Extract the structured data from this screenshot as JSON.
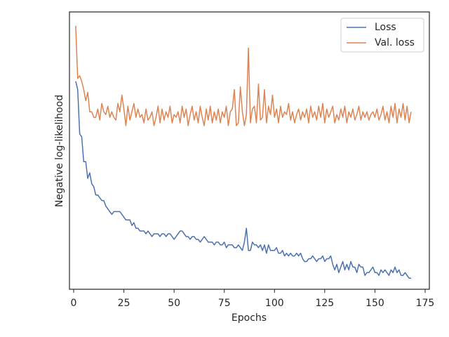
{
  "chart_data": {
    "type": "line",
    "xlabel": "Epochs",
    "ylabel": "Negative log-likelihood",
    "x": [
      1,
      2,
      3,
      4,
      5,
      6,
      7,
      8,
      9,
      10,
      11,
      12,
      13,
      14,
      15,
      16,
      17,
      18,
      19,
      20,
      21,
      22,
      23,
      24,
      25,
      26,
      27,
      28,
      29,
      30,
      31,
      32,
      33,
      34,
      35,
      36,
      37,
      38,
      39,
      40,
      41,
      42,
      43,
      44,
      45,
      46,
      47,
      48,
      49,
      50,
      51,
      52,
      53,
      54,
      55,
      56,
      57,
      58,
      59,
      60,
      61,
      62,
      63,
      64,
      65,
      66,
      67,
      68,
      69,
      70,
      71,
      72,
      73,
      74,
      75,
      76,
      77,
      78,
      79,
      80,
      81,
      82,
      83,
      84,
      85,
      86,
      87,
      88,
      89,
      90,
      91,
      92,
      93,
      94,
      95,
      96,
      97,
      98,
      99,
      100,
      101,
      102,
      103,
      104,
      105,
      106,
      107,
      108,
      109,
      110,
      111,
      112,
      113,
      114,
      115,
      116,
      117,
      118,
      119,
      120,
      121,
      122,
      123,
      124,
      125,
      126,
      127,
      128,
      129,
      130,
      131,
      132,
      133,
      134,
      135,
      136,
      137,
      138,
      139,
      140,
      141,
      142,
      143,
      144,
      145,
      146,
      147,
      148,
      149,
      150,
      151,
      152,
      153,
      154,
      155,
      156,
      157,
      158,
      159,
      160,
      161,
      162,
      163,
      164,
      165,
      166,
      167,
      168
    ],
    "series": [
      {
        "name": "Loss",
        "color": "#4c72b0",
        "values": [
          0.75,
          0.72,
          0.56,
          0.55,
          0.46,
          0.46,
          0.4,
          0.42,
          0.38,
          0.37,
          0.34,
          0.34,
          0.33,
          0.32,
          0.32,
          0.3,
          0.29,
          0.28,
          0.27,
          0.28,
          0.28,
          0.28,
          0.28,
          0.27,
          0.26,
          0.25,
          0.25,
          0.25,
          0.23,
          0.24,
          0.22,
          0.22,
          0.21,
          0.21,
          0.21,
          0.2,
          0.21,
          0.2,
          0.19,
          0.2,
          0.2,
          0.2,
          0.19,
          0.2,
          0.2,
          0.19,
          0.2,
          0.2,
          0.19,
          0.18,
          0.19,
          0.2,
          0.21,
          0.21,
          0.2,
          0.19,
          0.19,
          0.18,
          0.19,
          0.19,
          0.18,
          0.18,
          0.17,
          0.18,
          0.19,
          0.18,
          0.17,
          0.17,
          0.17,
          0.16,
          0.17,
          0.17,
          0.16,
          0.16,
          0.17,
          0.15,
          0.16,
          0.16,
          0.16,
          0.15,
          0.15,
          0.16,
          0.15,
          0.14,
          0.17,
          0.22,
          0.14,
          0.14,
          0.17,
          0.16,
          0.16,
          0.15,
          0.16,
          0.14,
          0.16,
          0.13,
          0.16,
          0.14,
          0.14,
          0.14,
          0.15,
          0.13,
          0.13,
          0.14,
          0.12,
          0.13,
          0.12,
          0.13,
          0.12,
          0.12,
          0.13,
          0.12,
          0.13,
          0.11,
          0.1,
          0.1,
          0.11,
          0.11,
          0.12,
          0.11,
          0.1,
          0.11,
          0.11,
          0.12,
          0.1,
          0.11,
          0.11,
          0.12,
          0.09,
          0.07,
          0.09,
          0.06,
          0.08,
          0.1,
          0.07,
          0.09,
          0.07,
          0.1,
          0.08,
          0.08,
          0.06,
          0.09,
          0.08,
          0.08,
          0.05,
          0.06,
          0.06,
          0.07,
          0.08,
          0.06,
          0.06,
          0.05,
          0.07,
          0.06,
          0.07,
          0.06,
          0.05,
          0.07,
          0.06,
          0.08,
          0.06,
          0.07,
          0.05,
          0.05,
          0.06,
          0.05,
          0.04,
          0.04
        ]
      },
      {
        "name": "Val. loss",
        "color": "#dd8452",
        "values": [
          0.95,
          0.76,
          0.77,
          0.75,
          0.72,
          0.68,
          0.71,
          0.64,
          0.64,
          0.62,
          0.62,
          0.65,
          0.61,
          0.67,
          0.64,
          0.63,
          0.66,
          0.62,
          0.64,
          0.62,
          0.61,
          0.67,
          0.64,
          0.7,
          0.65,
          0.59,
          0.66,
          0.61,
          0.64,
          0.67,
          0.62,
          0.65,
          0.62,
          0.63,
          0.6,
          0.65,
          0.61,
          0.62,
          0.64,
          0.59,
          0.62,
          0.66,
          0.6,
          0.65,
          0.61,
          0.64,
          0.62,
          0.66,
          0.6,
          0.63,
          0.62,
          0.64,
          0.6,
          0.66,
          0.62,
          0.65,
          0.59,
          0.63,
          0.66,
          0.61,
          0.64,
          0.6,
          0.66,
          0.62,
          0.59,
          0.65,
          0.61,
          0.66,
          0.6,
          0.64,
          0.61,
          0.65,
          0.6,
          0.64,
          0.62,
          0.66,
          0.59,
          0.64,
          0.65,
          0.72,
          0.59,
          0.6,
          0.73,
          0.64,
          0.59,
          0.63,
          0.87,
          0.6,
          0.65,
          0.66,
          0.6,
          0.74,
          0.61,
          0.62,
          0.72,
          0.6,
          0.66,
          0.63,
          0.7,
          0.62,
          0.65,
          0.6,
          0.66,
          0.62,
          0.64,
          0.63,
          0.67,
          0.61,
          0.64,
          0.6,
          0.63,
          0.65,
          0.61,
          0.64,
          0.62,
          0.65,
          0.6,
          0.66,
          0.62,
          0.64,
          0.61,
          0.66,
          0.62,
          0.67,
          0.6,
          0.65,
          0.62,
          0.64,
          0.66,
          0.6,
          0.63,
          0.61,
          0.65,
          0.62,
          0.66,
          0.6,
          0.64,
          0.62,
          0.65,
          0.61,
          0.63,
          0.66,
          0.61,
          0.64,
          0.62,
          0.64,
          0.61,
          0.63,
          0.64,
          0.62,
          0.65,
          0.61,
          0.63,
          0.66,
          0.61,
          0.64,
          0.6,
          0.66,
          0.62,
          0.67,
          0.6,
          0.65,
          0.62,
          0.67,
          0.61,
          0.66,
          0.6,
          0.64
        ]
      }
    ],
    "xlim": [
      -2.1,
      177.1
    ],
    "xticks": [
      0,
      25,
      50,
      75,
      100,
      125,
      150,
      175
    ],
    "ylim": [
      0,
      1
    ],
    "legend": "upper right"
  }
}
